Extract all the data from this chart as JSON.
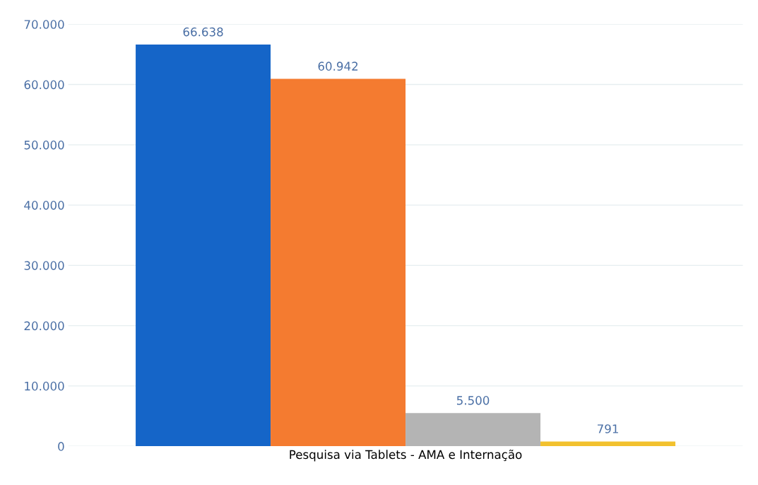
{
  "chart_data": {
    "type": "bar",
    "categories": [
      "Pesquisa via Tablets - AMA e Internação"
    ],
    "series": [
      {
        "color": "#1565c8",
        "values": [
          66638
        ],
        "value_labels": [
          "66.638"
        ]
      },
      {
        "color": "#f47b30",
        "values": [
          60942
        ],
        "value_labels": [
          "60.942"
        ]
      },
      {
        "color": "#b4b4b4",
        "values": [
          5500
        ],
        "value_labels": [
          "5.500"
        ]
      },
      {
        "color": "#f2c12e",
        "values": [
          791
        ],
        "value_labels": [
          "791"
        ]
      }
    ],
    "ylim": [
      0,
      70000
    ],
    "yticks": [
      {
        "value": 0,
        "label": "0"
      },
      {
        "value": 10000,
        "label": "10.000"
      },
      {
        "value": 20000,
        "label": "20.000"
      },
      {
        "value": 30000,
        "label": "30.000"
      },
      {
        "value": 40000,
        "label": "40.000"
      },
      {
        "value": 50000,
        "label": "50.000"
      },
      {
        "value": 60000,
        "label": "60.000"
      },
      {
        "value": 70000,
        "label": "70.000"
      }
    ],
    "grid": "y"
  }
}
